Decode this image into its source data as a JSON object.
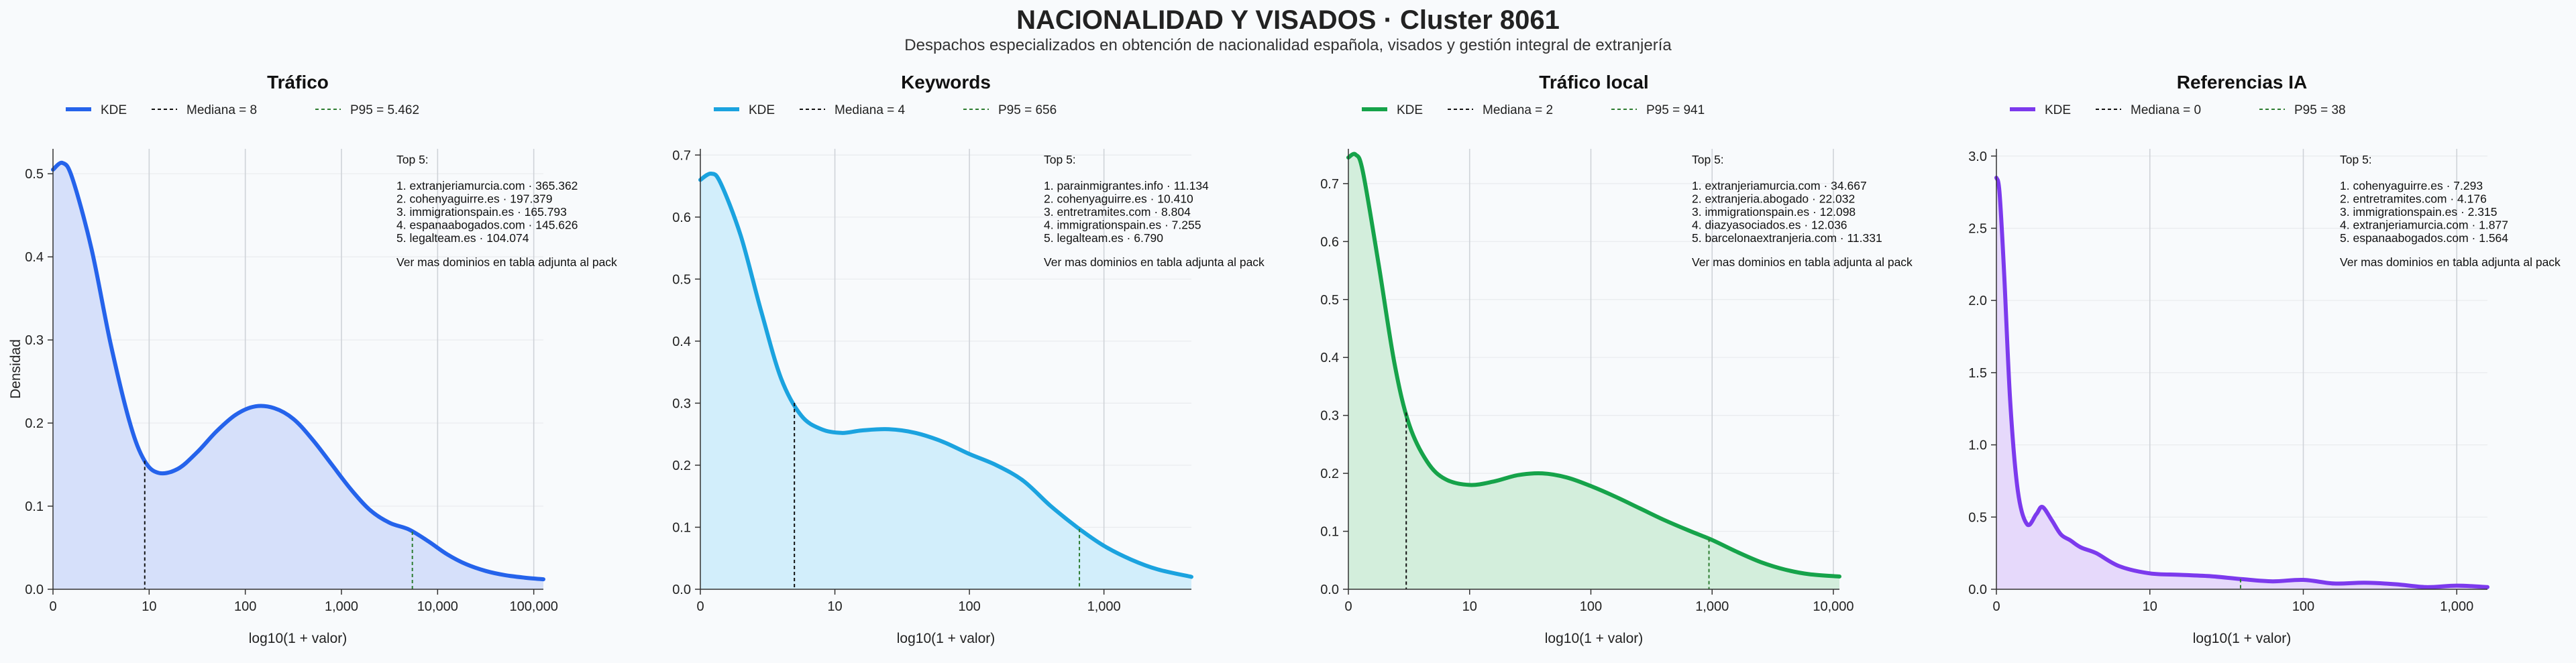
{
  "title": "NACIONALIDAD Y VISADOS · Cluster 8061",
  "subtitle": "Despachos especializados en obtención de nacionalidad española, visados y gestión integral de extranjería",
  "ylabel": "Densidad",
  "colors": {
    "background": "#f8fafc",
    "median": "#111111",
    "p95": "#2e7d32"
  },
  "chart_data": [
    {
      "type": "area",
      "title": "Tráfico",
      "xlabel": "log10(1 + valor)",
      "color": "#2563eb",
      "fill": "#d6e0fa",
      "xlim": [
        0,
        5.1
      ],
      "ylim": [
        0,
        0.53
      ],
      "xticks": [
        {
          "v": 0,
          "t": "0"
        },
        {
          "v": 1,
          "t": "10"
        },
        {
          "v": 2,
          "t": "100"
        },
        {
          "v": 3,
          "t": "1,000"
        },
        {
          "v": 4,
          "t": "10,000"
        },
        {
          "v": 5,
          "t": "100,000"
        }
      ],
      "yticks": [
        {
          "v": 0,
          "t": "0.0"
        },
        {
          "v": 0.1,
          "t": "0.1"
        },
        {
          "v": 0.2,
          "t": "0.2"
        },
        {
          "v": 0.3,
          "t": "0.3"
        },
        {
          "v": 0.4,
          "t": "0.4"
        },
        {
          "v": 0.5,
          "t": "0.5"
        }
      ],
      "median": {
        "label": "Mediana = 8",
        "value": 8
      },
      "p95": {
        "label": "P95 = 5.462",
        "value": 5462
      },
      "legend": {
        "kde": "KDE",
        "median": "Mediana = 8",
        "p95": "P95 = 5.462"
      },
      "top": {
        "heading": "Top 5:",
        "items": [
          "1. extranjeriamurcia.com · 365.362",
          "2. cohenyaguirre.es · 197.379",
          "3. immigrationspain.es · 165.793",
          "4. espanaabogados.com · 145.626",
          "5. legalteam.es · 104.074"
        ],
        "footer": "Ver mas dominios en tabla adjunta al pack"
      },
      "x": [
        0,
        0.1,
        0.2,
        0.4,
        0.6,
        0.8,
        0.95,
        1.1,
        1.3,
        1.5,
        1.7,
        1.9,
        2.1,
        2.3,
        2.5,
        2.7,
        2.9,
        3.1,
        3.3,
        3.5,
        3.7,
        3.9,
        4.1,
        4.3,
        4.5,
        4.7,
        4.9,
        5.1
      ],
      "y": [
        0.505,
        0.513,
        0.495,
        0.41,
        0.295,
        0.2,
        0.155,
        0.14,
        0.145,
        0.165,
        0.19,
        0.21,
        0.22,
        0.218,
        0.205,
        0.18,
        0.15,
        0.12,
        0.095,
        0.08,
        0.072,
        0.058,
        0.042,
        0.03,
        0.022,
        0.017,
        0.014,
        0.012
      ]
    },
    {
      "type": "area",
      "title": "Keywords",
      "xlabel": "log10(1 + valor)",
      "color": "#1ba3df",
      "fill": "#d2eefb",
      "xlim": [
        0,
        3.65
      ],
      "ylim": [
        0,
        0.71
      ],
      "xticks": [
        {
          "v": 0,
          "t": "0"
        },
        {
          "v": 1,
          "t": "10"
        },
        {
          "v": 2,
          "t": "100"
        },
        {
          "v": 3,
          "t": "1,000"
        }
      ],
      "yticks": [
        {
          "v": 0,
          "t": "0.0"
        },
        {
          "v": 0.1,
          "t": "0.1"
        },
        {
          "v": 0.2,
          "t": "0.2"
        },
        {
          "v": 0.3,
          "t": "0.3"
        },
        {
          "v": 0.4,
          "t": "0.4"
        },
        {
          "v": 0.5,
          "t": "0.5"
        },
        {
          "v": 0.6,
          "t": "0.6"
        },
        {
          "v": 0.7,
          "t": "0.7"
        }
      ],
      "median": {
        "label": "Mediana = 4",
        "value": 4
      },
      "p95": {
        "label": "P95 = 656",
        "value": 656
      },
      "legend": {
        "kde": "KDE",
        "median": "Mediana = 4",
        "p95": "P95 = 656"
      },
      "top": {
        "heading": "Top 5:",
        "items": [
          "1. parainmigrantes.info · 11.134",
          "2. cohenyaguirre.es · 10.410",
          "3. entretramites.com · 8.804",
          "4. immigrationspain.es · 7.255",
          "5. legalteam.es · 6.790"
        ],
        "footer": "Ver mas dominios en tabla adjunta al pack"
      },
      "x": [
        0,
        0.08,
        0.15,
        0.3,
        0.45,
        0.6,
        0.75,
        0.9,
        1.05,
        1.2,
        1.4,
        1.6,
        1.8,
        2.0,
        2.2,
        2.4,
        2.6,
        2.8,
        3.0,
        3.2,
        3.4,
        3.65
      ],
      "y": [
        0.66,
        0.67,
        0.655,
        0.57,
        0.45,
        0.34,
        0.28,
        0.258,
        0.252,
        0.256,
        0.258,
        0.252,
        0.238,
        0.218,
        0.2,
        0.175,
        0.135,
        0.1,
        0.07,
        0.048,
        0.032,
        0.02
      ]
    },
    {
      "type": "area",
      "title": "Tráfico local",
      "xlabel": "log10(1 + valor)",
      "color": "#16a34a",
      "fill": "#d3eedc",
      "xlim": [
        0,
        4.05
      ],
      "ylim": [
        0,
        0.76
      ],
      "xticks": [
        {
          "v": 0,
          "t": "0"
        },
        {
          "v": 1,
          "t": "10"
        },
        {
          "v": 2,
          "t": "100"
        },
        {
          "v": 3,
          "t": "1,000"
        },
        {
          "v": 4,
          "t": "10,000"
        }
      ],
      "yticks": [
        {
          "v": 0,
          "t": "0.0"
        },
        {
          "v": 0.1,
          "t": "0.1"
        },
        {
          "v": 0.2,
          "t": "0.2"
        },
        {
          "v": 0.3,
          "t": "0.3"
        },
        {
          "v": 0.4,
          "t": "0.4"
        },
        {
          "v": 0.5,
          "t": "0.5"
        },
        {
          "v": 0.6,
          "t": "0.6"
        },
        {
          "v": 0.7,
          "t": "0.7"
        }
      ],
      "median": {
        "label": "Mediana = 2",
        "value": 2
      },
      "p95": {
        "label": "P95 = 941",
        "value": 941
      },
      "legend": {
        "kde": "KDE",
        "median": "Mediana = 2",
        "p95": "P95 = 941"
      },
      "top": {
        "heading": "Top 5:",
        "items": [
          "1. extranjeriamurcia.com · 34.667",
          "2. extranjeria.abogado · 22.032",
          "3. immigrationspain.es · 12.098",
          "4. diazyasociados.es · 12.036",
          "5. barcelonaextranjeria.com · 11.331"
        ],
        "footer": "Ver mas dominios en tabla adjunta al pack"
      },
      "x": [
        0,
        0.06,
        0.12,
        0.25,
        0.38,
        0.5,
        0.65,
        0.8,
        1.0,
        1.2,
        1.4,
        1.6,
        1.8,
        2.0,
        2.2,
        2.4,
        2.6,
        2.8,
        3.0,
        3.2,
        3.4,
        3.6,
        3.8,
        4.05
      ],
      "y": [
        0.745,
        0.75,
        0.72,
        0.56,
        0.39,
        0.285,
        0.22,
        0.19,
        0.18,
        0.186,
        0.197,
        0.2,
        0.193,
        0.178,
        0.16,
        0.14,
        0.12,
        0.102,
        0.085,
        0.065,
        0.047,
        0.034,
        0.026,
        0.022
      ]
    },
    {
      "type": "area",
      "title": "Referencias IA",
      "xlabel": "log10(1 + valor)",
      "color": "#7c3aed",
      "fill": "#e6d9fb",
      "xlim": [
        0,
        3.2
      ],
      "ylim": [
        0,
        3.05
      ],
      "xticks": [
        {
          "v": 0,
          "t": "0"
        },
        {
          "v": 1,
          "t": "10"
        },
        {
          "v": 2,
          "t": "100"
        },
        {
          "v": 3,
          "t": "1,000"
        }
      ],
      "yticks": [
        {
          "v": 0,
          "t": "0.0"
        },
        {
          "v": 0.5,
          "t": "0.5"
        },
        {
          "v": 1,
          "t": "1.0"
        },
        {
          "v": 1.5,
          "t": "1.5"
        },
        {
          "v": 2,
          "t": "2.0"
        },
        {
          "v": 2.5,
          "t": "2.5"
        },
        {
          "v": 3,
          "t": "3.0"
        }
      ],
      "median": {
        "label": "Mediana = 0",
        "value": 0
      },
      "p95": {
        "label": "P95 = 38",
        "value": 38
      },
      "legend": {
        "kde": "KDE",
        "median": "Mediana = 0",
        "p95": "P95 = 38"
      },
      "top": {
        "heading": "Top 5:",
        "items": [
          "1. cohenyaguirre.es · 7.293",
          "2. entretramites.com · 4.176",
          "3. immigrationspain.es · 2.315",
          "4. extranjeriamurcia.com · 1.877",
          "5. espanaabogados.com · 1.564"
        ],
        "footer": "Ver mas dominios en tabla adjunta al pack"
      },
      "x": [
        0,
        0.02,
        0.05,
        0.09,
        0.14,
        0.2,
        0.26,
        0.3,
        0.36,
        0.42,
        0.48,
        0.55,
        0.65,
        0.8,
        1.0,
        1.2,
        1.4,
        1.6,
        1.8,
        2.0,
        2.2,
        2.4,
        2.6,
        2.8,
        3.0,
        3.2
      ],
      "y": [
        2.85,
        2.75,
        2.2,
        1.3,
        0.68,
        0.45,
        0.52,
        0.57,
        0.48,
        0.38,
        0.34,
        0.29,
        0.25,
        0.16,
        0.11,
        0.1,
        0.09,
        0.07,
        0.055,
        0.065,
        0.04,
        0.045,
        0.035,
        0.015,
        0.025,
        0.015
      ]
    }
  ]
}
